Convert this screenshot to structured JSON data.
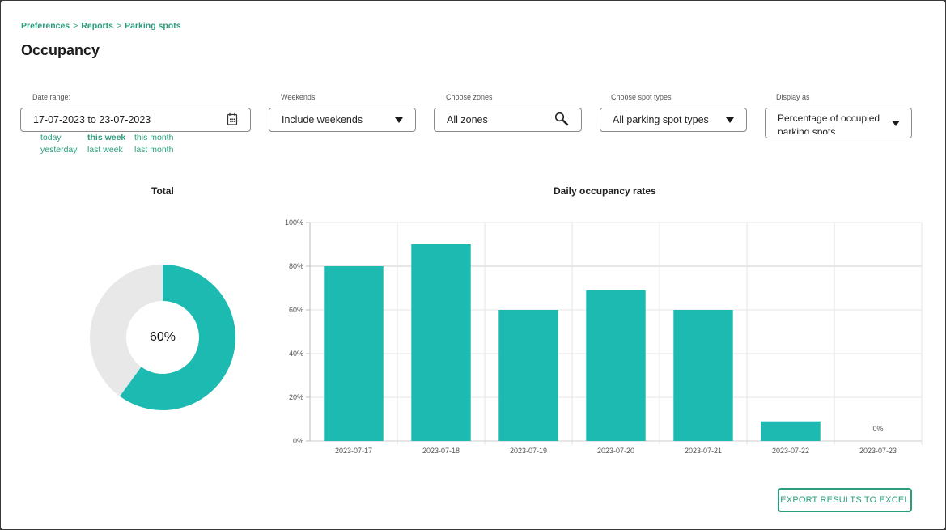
{
  "breadcrumb": [
    "Preferences",
    "Reports",
    "Parking spots"
  ],
  "breadcrumb_separator": ">",
  "page_title": "Occupancy",
  "filters": {
    "date_range": {
      "label": "Date range:",
      "value": "17-07-2023 to 23-07-2023",
      "icon": "calendar-icon"
    },
    "weekends": {
      "label": "Weekends",
      "value": "Include weekends"
    },
    "zones": {
      "label": "Choose zones",
      "value": "All zones",
      "icon": "search-icon"
    },
    "spot_types": {
      "label": "Choose spot types",
      "value": "All parking spot types"
    },
    "display_as": {
      "label": "Display as",
      "value": "Percentage of occupied parking spots"
    }
  },
  "quick_ranges": [
    {
      "label": "today",
      "active": false
    },
    {
      "label": "this week",
      "active": true
    },
    {
      "label": "this month",
      "active": false
    },
    {
      "label": "yesterday",
      "active": false
    },
    {
      "label": "last week",
      "active": false
    },
    {
      "label": "last month",
      "active": false
    }
  ],
  "total_chart": {
    "title": "Total",
    "center_label": "60%",
    "value": 60,
    "colors": {
      "filled": "#1dbab2",
      "empty": "#e8e8e8"
    }
  },
  "chart_data": {
    "type": "bar",
    "title": "Daily occupancy rates",
    "categories": [
      "2023-07-17",
      "2023-07-18",
      "2023-07-19",
      "2023-07-20",
      "2023-07-21",
      "2023-07-22",
      "2023-07-23"
    ],
    "values": [
      80,
      90,
      60,
      69,
      60,
      9,
      0
    ],
    "ylim": [
      0,
      100
    ],
    "yticks": [
      "0%",
      "20%",
      "40%",
      "60%",
      "80%",
      "100%"
    ],
    "zero_label": "0%",
    "grid": true,
    "bar_color": "#1dbab2"
  },
  "export_label": "EXPORT RESULTS TO EXCEL",
  "colors": {
    "accent": "#2a9d7c",
    "bar": "#1dbab2"
  }
}
